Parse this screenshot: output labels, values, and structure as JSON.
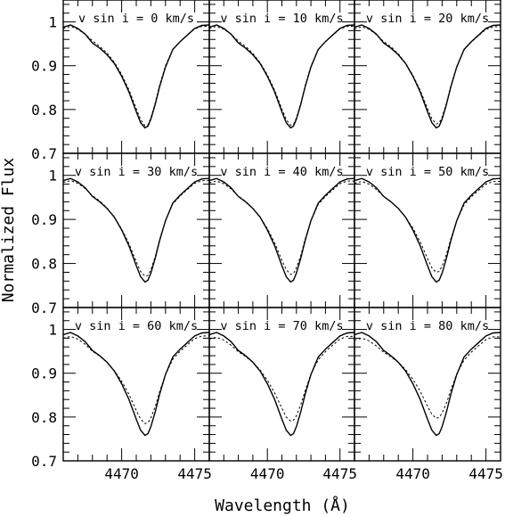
{
  "chart_data": {
    "type": "line",
    "layout": {
      "rows": 3,
      "cols": 3
    },
    "xlabel": "Wavelength (Å)",
    "ylabel": "Normalized Flux",
    "xlim": [
      4466.0,
      4476.0
    ],
    "ylim": [
      0.7,
      1.05
    ],
    "x_ticks": [
      4470,
      4475
    ],
    "y_ticks": [
      0.7,
      0.8,
      0.9,
      1.0
    ],
    "y_tick_labels": [
      "0.7",
      "0.8",
      "0.9",
      "1"
    ],
    "line_styles": {
      "observed": "solid",
      "model": "dotted"
    },
    "observed_x": [
      4466.0,
      4466.5,
      4467.0,
      4467.5,
      4468.0,
      4468.5,
      4469.0,
      4469.5,
      4470.0,
      4470.5,
      4471.0,
      4471.3,
      4471.6,
      4471.8,
      4472.0,
      4472.3,
      4472.6,
      4473.0,
      4473.5,
      4474.0,
      4474.5,
      4475.0,
      4475.5,
      4476.0
    ],
    "observed_y": [
      0.988,
      0.993,
      0.985,
      0.972,
      0.952,
      0.94,
      0.925,
      0.905,
      0.876,
      0.84,
      0.795,
      0.77,
      0.758,
      0.762,
      0.778,
      0.812,
      0.852,
      0.897,
      0.937,
      0.955,
      0.97,
      0.985,
      0.992,
      0.993
    ],
    "panels": [
      {
        "label": "v sin i = 0 km/s",
        "model_y": [
          0.985,
          0.99,
          0.983,
          0.972,
          0.957,
          0.944,
          0.929,
          0.908,
          0.88,
          0.845,
          0.802,
          0.777,
          0.763,
          0.765,
          0.781,
          0.815,
          0.855,
          0.9,
          0.937,
          0.955,
          0.97,
          0.984,
          0.99,
          0.99
        ]
      },
      {
        "label": "v sin i = 10 km/s",
        "model_y": [
          0.985,
          0.99,
          0.983,
          0.972,
          0.956,
          0.944,
          0.928,
          0.907,
          0.879,
          0.844,
          0.801,
          0.777,
          0.764,
          0.766,
          0.781,
          0.814,
          0.854,
          0.899,
          0.937,
          0.955,
          0.97,
          0.984,
          0.99,
          0.99
        ]
      },
      {
        "label": "v sin i = 20 km/s",
        "model_y": [
          0.984,
          0.989,
          0.983,
          0.971,
          0.955,
          0.943,
          0.927,
          0.906,
          0.878,
          0.844,
          0.802,
          0.779,
          0.767,
          0.769,
          0.783,
          0.815,
          0.854,
          0.898,
          0.936,
          0.954,
          0.969,
          0.983,
          0.989,
          0.989
        ]
      },
      {
        "label": "v sin i = 30 km/s",
        "model_y": [
          0.984,
          0.988,
          0.982,
          0.97,
          0.954,
          0.942,
          0.926,
          0.905,
          0.878,
          0.845,
          0.804,
          0.782,
          0.771,
          0.773,
          0.786,
          0.816,
          0.854,
          0.897,
          0.935,
          0.953,
          0.968,
          0.982,
          0.988,
          0.988
        ]
      },
      {
        "label": "v sin i = 40 km/s",
        "model_y": [
          0.983,
          0.987,
          0.981,
          0.969,
          0.953,
          0.941,
          0.925,
          0.905,
          0.879,
          0.847,
          0.807,
          0.786,
          0.775,
          0.777,
          0.79,
          0.818,
          0.855,
          0.897,
          0.934,
          0.952,
          0.967,
          0.981,
          0.987,
          0.987
        ]
      },
      {
        "label": "v sin i = 50 km/s",
        "model_y": [
          0.982,
          0.986,
          0.98,
          0.968,
          0.952,
          0.94,
          0.925,
          0.905,
          0.88,
          0.849,
          0.811,
          0.79,
          0.78,
          0.782,
          0.794,
          0.821,
          0.856,
          0.897,
          0.933,
          0.951,
          0.966,
          0.98,
          0.986,
          0.986
        ]
      },
      {
        "label": "v sin i = 60 km/s",
        "model_y": [
          0.98,
          0.984,
          0.978,
          0.966,
          0.95,
          0.939,
          0.925,
          0.906,
          0.882,
          0.852,
          0.815,
          0.795,
          0.785,
          0.787,
          0.798,
          0.824,
          0.858,
          0.897,
          0.932,
          0.95,
          0.965,
          0.979,
          0.985,
          0.985
        ]
      },
      {
        "label": "v sin i = 70 km/s",
        "model_y": [
          0.978,
          0.982,
          0.976,
          0.964,
          0.949,
          0.938,
          0.925,
          0.907,
          0.884,
          0.855,
          0.82,
          0.8,
          0.791,
          0.793,
          0.803,
          0.828,
          0.86,
          0.898,
          0.931,
          0.949,
          0.964,
          0.978,
          0.984,
          0.984
        ]
      },
      {
        "label": "v sin i = 80 km/s",
        "model_y": [
          0.976,
          0.98,
          0.974,
          0.962,
          0.948,
          0.937,
          0.925,
          0.908,
          0.886,
          0.859,
          0.825,
          0.806,
          0.797,
          0.799,
          0.809,
          0.832,
          0.862,
          0.898,
          0.93,
          0.948,
          0.963,
          0.977,
          0.983,
          0.983
        ]
      }
    ]
  }
}
